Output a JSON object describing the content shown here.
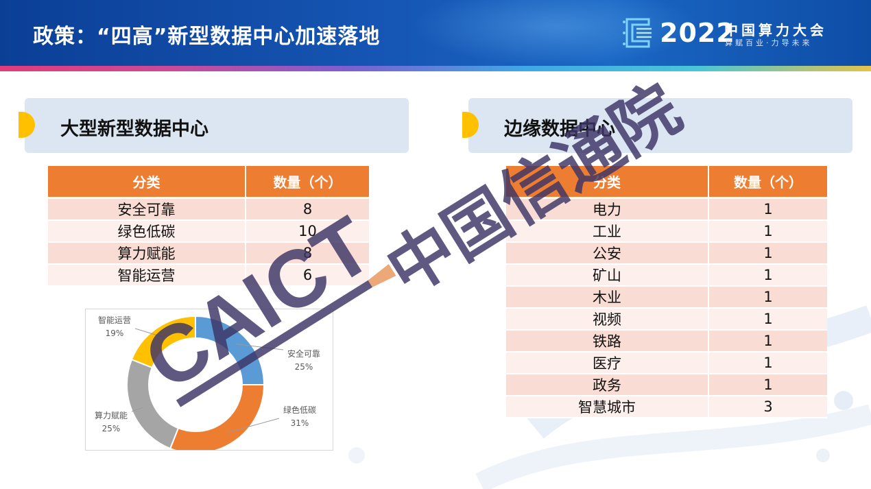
{
  "header": {
    "title": "政策：“四高”新型数据中心加速落地",
    "logo_year": "2022",
    "logo_name": "中国算力大会",
    "logo_slogan": "算赋百业·力导未来"
  },
  "left_section": {
    "title": "大型新型数据中心",
    "table": {
      "headers": [
        "分类",
        "数量（个）"
      ],
      "rows": [
        [
          "安全可靠",
          "8"
        ],
        [
          "绿色低碳",
          "10"
        ],
        [
          "算力赋能",
          "8"
        ],
        [
          "智能运营",
          "6"
        ]
      ]
    }
  },
  "right_section": {
    "title": "边缘数据中心",
    "table": {
      "headers": [
        "分类",
        "数量（个）"
      ],
      "rows": [
        [
          "电力",
          "1"
        ],
        [
          "工业",
          "1"
        ],
        [
          "公安",
          "1"
        ],
        [
          "矿山",
          "1"
        ],
        [
          "木业",
          "1"
        ],
        [
          "视频",
          "1"
        ],
        [
          "铁路",
          "1"
        ],
        [
          "医疗",
          "1"
        ],
        [
          "政务",
          "1"
        ],
        [
          "智慧城市",
          "3"
        ]
      ]
    }
  },
  "chart_data": {
    "type": "pie",
    "donut": true,
    "categories": [
      "安全可靠",
      "绿色低碳",
      "算力赋能",
      "智能运营"
    ],
    "values": [
      25,
      31,
      25,
      19
    ],
    "labels": [
      "25%",
      "31%",
      "25%",
      "19%"
    ],
    "colors": [
      "#5b9bd5",
      "#ed7d31",
      "#a5a5a5",
      "#ffc000"
    ],
    "title": ""
  },
  "watermark": {
    "latin": "CAICT",
    "cjk": "中国信通院"
  }
}
